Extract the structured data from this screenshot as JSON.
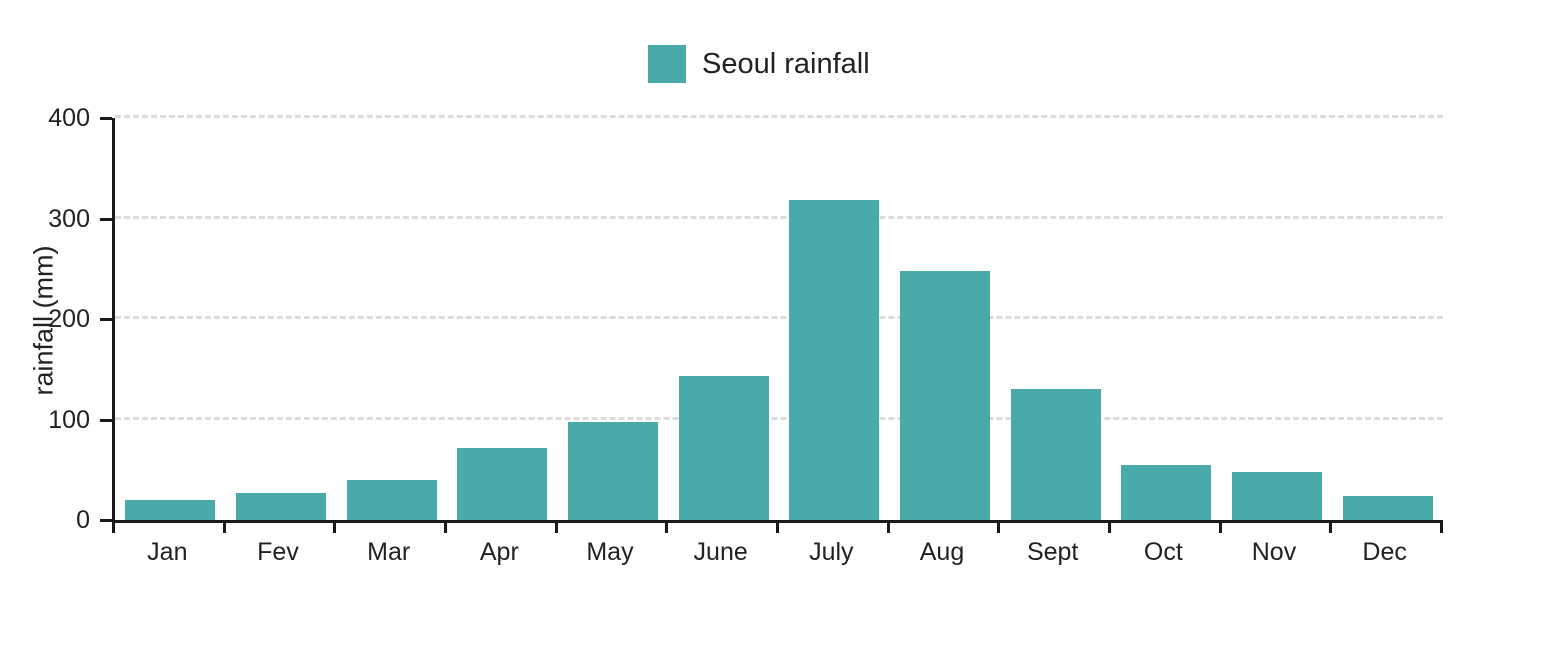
{
  "chart_data": {
    "type": "bar",
    "title": "",
    "xlabel": "",
    "ylabel": "rainfall (mm)",
    "ylim": [
      0,
      400
    ],
    "yticks": [
      0,
      100,
      200,
      300,
      400
    ],
    "grid": "horizontal-dashed",
    "legend_position": "top-center",
    "categories": [
      "Jan",
      "Fev",
      "Mar",
      "Apr",
      "May",
      "June",
      "July",
      "Aug",
      "Sept",
      "Oct",
      "Nov",
      "Dec"
    ],
    "series": [
      {
        "name": "Seoul rainfall",
        "color": "#4AA9A9",
        "values": [
          20,
          27,
          40,
          72,
          98,
          143,
          318,
          248,
          130,
          55,
          48,
          24
        ]
      }
    ]
  },
  "colors": {
    "bar": "#4AA9A9",
    "axis": "#1a1a1a",
    "gridline": "#dcdcdc",
    "text": "#222222",
    "background": "#ffffff"
  }
}
